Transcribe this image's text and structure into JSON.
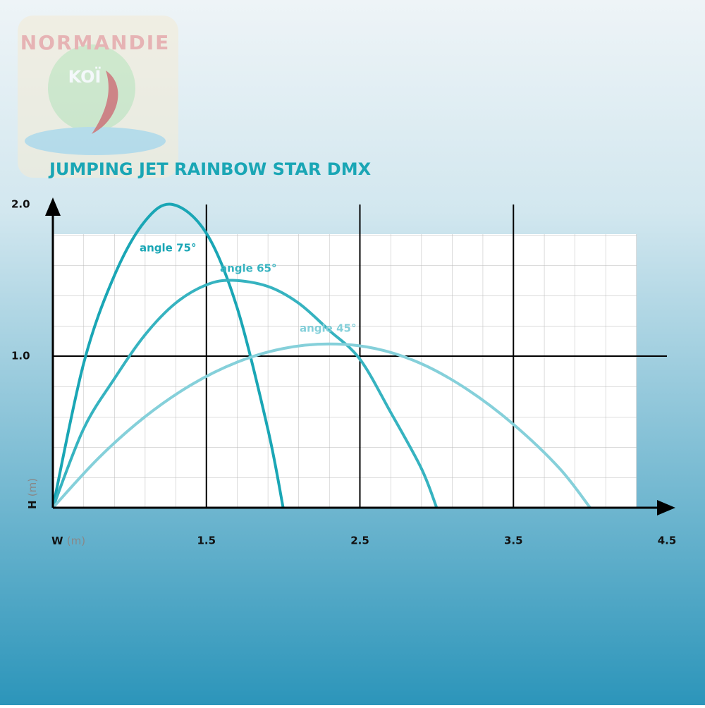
{
  "logo": {
    "brand": "NORMANDIE",
    "name": "KOÏ"
  },
  "chart_data": {
    "type": "line",
    "title": "JUMPING JET RAINBOW STAR DMX",
    "xlabel": "W",
    "xunit": "(m)",
    "ylabel": "H",
    "yunit": "(m)",
    "xlim": [
      0.5,
      4.5
    ],
    "ylim": [
      0,
      2
    ],
    "xticks": [
      1.5,
      2.5,
      3.5,
      4.5
    ],
    "yticks": [
      {
        "value": 1,
        "label": "1.0"
      },
      {
        "value": 2,
        "label": "2.0"
      }
    ],
    "grid": true,
    "series": [
      {
        "name": "angle 75°",
        "color": "#1aa6b5",
        "x": [
          0.5,
          0.7,
          0.9,
          1.1,
          1.28,
          1.5,
          1.7,
          1.9,
          2.0
        ],
        "values": [
          0,
          0.95,
          1.53,
          1.89,
          2.0,
          1.81,
          1.32,
          0.52,
          0
        ]
      },
      {
        "name": "angle 65°",
        "color": "#36b3c0",
        "x": [
          0.5,
          0.7,
          0.9,
          1.1,
          1.3,
          1.5,
          1.67,
          1.9,
          2.1,
          2.3,
          2.5,
          2.7,
          2.9,
          3.0
        ],
        "values": [
          0,
          0.52,
          0.85,
          1.14,
          1.35,
          1.47,
          1.5,
          1.46,
          1.35,
          1.17,
          0.98,
          0.63,
          0.26,
          0
        ]
      },
      {
        "name": "angle 45°",
        "color": "#85d0da",
        "x": [
          0.5,
          0.8,
          1.1,
          1.4,
          1.7,
          2.0,
          2.3,
          2.6,
          2.9,
          3.2,
          3.5,
          3.8,
          4.0
        ],
        "values": [
          0,
          0.33,
          0.6,
          0.81,
          0.96,
          1.05,
          1.08,
          1.05,
          0.95,
          0.78,
          0.55,
          0.26,
          0
        ]
      }
    ]
  }
}
